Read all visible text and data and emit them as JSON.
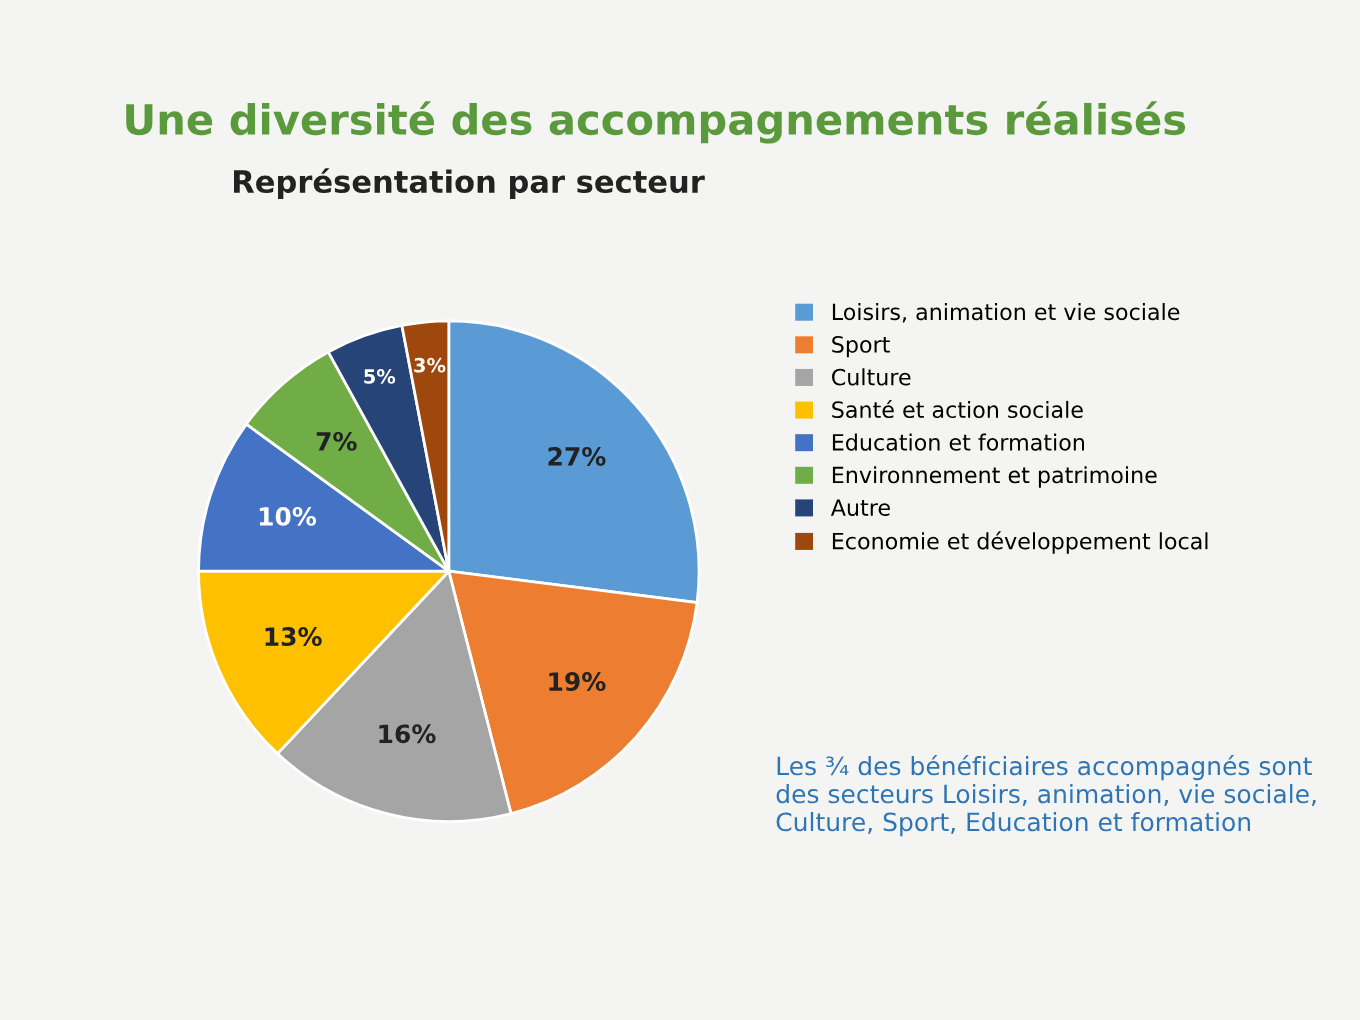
{
  "chart_data": {
    "type": "pie",
    "title": "Une diversité des accompagnements réalisés",
    "subtitle": "Représentation par secteur",
    "categories": [
      "Loisirs, animation et vie sociale",
      "Sport",
      "Culture",
      "Santé et action sociale",
      "Education et formation",
      "Environnement et patrimoine",
      "Autre",
      "Economie et développement local"
    ],
    "values": [
      27,
      19,
      16,
      13,
      10,
      7,
      5,
      3
    ],
    "value_labels": [
      "27%",
      "19%",
      "16%",
      "13%",
      "10%",
      "7%",
      "5%",
      "3%"
    ],
    "colors": [
      "#5b9bd5",
      "#ed7d31",
      "#a5a5a5",
      "#ffc000",
      "#4472c4",
      "#70ad47",
      "#264478",
      "#9e480e"
    ],
    "legend": "right",
    "annotations": [
      "Les ¾ des bénéficiaires accompagnés sont des secteurs Loisirs, animation, vie sociale, Culture, Sport, Education et formation"
    ]
  }
}
